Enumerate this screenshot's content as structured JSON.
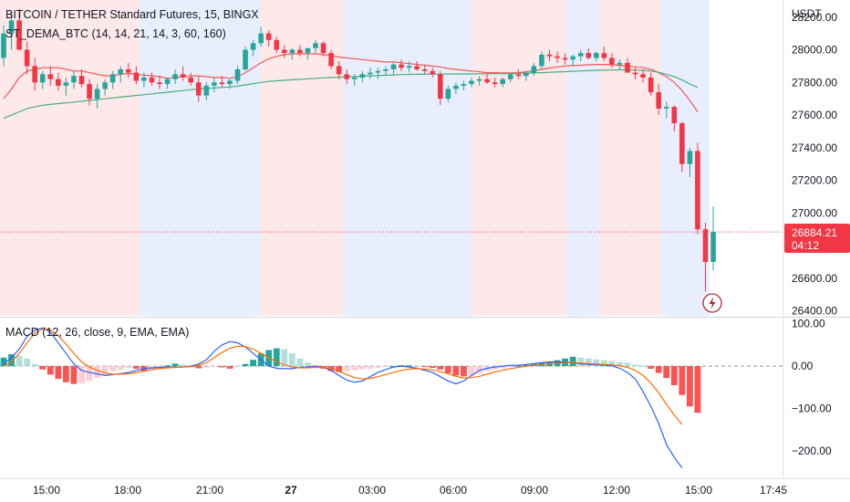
{
  "header": {
    "symbol_title": "BITCOIN / TETHER Standard Futures, 15, BINGX",
    "indicator": "ST_DEMA_BTC (14, 14, 21, 14, 3, 60, 160)",
    "currency": "USDT"
  },
  "price_badge": {
    "price": "26884.21",
    "countdown": "04:12"
  },
  "colors": {
    "up": "#26a69a",
    "down": "#f23645",
    "red_zone": "#fde8ea",
    "blue_zone": "#e8eefd",
    "dema_fast": "#f05a5a",
    "dema_slow": "#4caf7a",
    "macd_line": "#2962ff",
    "signal_line": "#ff6d00"
  },
  "chart_data": [
    {
      "type": "candlestick",
      "title": "BITCOIN / TETHER Standard Futures, 15, BINGX",
      "y_ticks": [
        "28200.00",
        "28000.00",
        "27800.00",
        "27600.00",
        "27400.00",
        "27200.00",
        "27000.00",
        "26800.00",
        "26600.00",
        "26400.00"
      ],
      "ylim": [
        26370,
        28305
      ],
      "x_ticks": [
        "15:00",
        "18:00",
        "21:00",
        "27",
        "03:00",
        "06:00",
        "09:00",
        "12:00",
        "15:00",
        "17:45"
      ],
      "candles_ohlc": [
        [
          27950,
          28150,
          27900,
          28100
        ],
        [
          28100,
          28230,
          28000,
          28180
        ],
        [
          28180,
          28250,
          28050,
          28000
        ],
        [
          28000,
          28050,
          27850,
          27900
        ],
        [
          27900,
          27950,
          27750,
          27800
        ],
        [
          27800,
          27870,
          27760,
          27850
        ],
        [
          27850,
          27900,
          27780,
          27820
        ],
        [
          27820,
          27860,
          27750,
          27780
        ],
        [
          27780,
          27830,
          27720,
          27800
        ],
        [
          27800,
          27870,
          27760,
          27840
        ],
        [
          27840,
          27880,
          27770,
          27790
        ],
        [
          27790,
          27820,
          27660,
          27700
        ],
        [
          27700,
          27790,
          27640,
          27760
        ],
        [
          27760,
          27820,
          27720,
          27800
        ],
        [
          27800,
          27870,
          27760,
          27850
        ],
        [
          27850,
          27900,
          27800,
          27880
        ],
        [
          27880,
          27920,
          27830,
          27860
        ],
        [
          27860,
          27900,
          27790,
          27810
        ],
        [
          27810,
          27860,
          27770,
          27830
        ],
        [
          27830,
          27860,
          27780,
          27800
        ],
        [
          27800,
          27840,
          27760,
          27790
        ],
        [
          27790,
          27830,
          27760,
          27820
        ],
        [
          27820,
          27880,
          27790,
          27850
        ],
        [
          27850,
          27900,
          27810,
          27830
        ],
        [
          27830,
          27860,
          27780,
          27800
        ],
        [
          27800,
          27840,
          27680,
          27720
        ],
        [
          27720,
          27800,
          27690,
          27780
        ],
        [
          27780,
          27830,
          27740,
          27800
        ],
        [
          27800,
          27840,
          27770,
          27790
        ],
        [
          27790,
          27820,
          27760,
          27810
        ],
        [
          27810,
          27900,
          27790,
          27880
        ],
        [
          27880,
          28020,
          27870,
          28000
        ],
        [
          28000,
          28060,
          27960,
          28040
        ],
        [
          28040,
          28140,
          28020,
          28100
        ],
        [
          28100,
          28120,
          28020,
          28060
        ],
        [
          28060,
          28080,
          27980,
          28000
        ],
        [
          28000,
          28030,
          27950,
          27980
        ],
        [
          27980,
          28010,
          27940,
          28000
        ],
        [
          28000,
          28030,
          27960,
          27980
        ],
        [
          27980,
          28010,
          27940,
          28010
        ],
        [
          28010,
          28060,
          27980,
          28040
        ],
        [
          28040,
          28050,
          27960,
          27980
        ],
        [
          27980,
          28000,
          27880,
          27900
        ],
        [
          27900,
          27930,
          27820,
          27850
        ],
        [
          27850,
          27880,
          27790,
          27820
        ],
        [
          27820,
          27850,
          27780,
          27830
        ],
        [
          27830,
          27870,
          27800,
          27850
        ],
        [
          27850,
          27890,
          27820,
          27860
        ],
        [
          27860,
          27890,
          27820,
          27870
        ],
        [
          27870,
          27900,
          27840,
          27880
        ],
        [
          27880,
          27920,
          27850,
          27910
        ],
        [
          27910,
          27940,
          27870,
          27890
        ],
        [
          27890,
          27930,
          27860,
          27900
        ],
        [
          27900,
          27930,
          27870,
          27880
        ],
        [
          27880,
          27910,
          27850,
          27870
        ],
        [
          27870,
          27890,
          27830,
          27850
        ],
        [
          27850,
          27870,
          27660,
          27700
        ],
        [
          27700,
          27780,
          27680,
          27760
        ],
        [
          27760,
          27800,
          27730,
          27780
        ],
        [
          27780,
          27810,
          27750,
          27790
        ],
        [
          27790,
          27830,
          27770,
          27810
        ],
        [
          27810,
          27840,
          27780,
          27820
        ],
        [
          27820,
          27850,
          27790,
          27800
        ],
        [
          27800,
          27830,
          27770,
          27790
        ],
        [
          27790,
          27830,
          27770,
          27820
        ],
        [
          27820,
          27860,
          27800,
          27850
        ],
        [
          27850,
          27880,
          27820,
          27840
        ],
        [
          27840,
          27870,
          27810,
          27860
        ],
        [
          27860,
          27920,
          27840,
          27900
        ],
        [
          27900,
          27990,
          27880,
          27970
        ],
        [
          27970,
          28000,
          27930,
          27960
        ],
        [
          27960,
          27990,
          27920,
          27950
        ],
        [
          27950,
          27980,
          27910,
          27940
        ],
        [
          27940,
          27970,
          27900,
          27960
        ],
        [
          27960,
          28000,
          27930,
          27980
        ],
        [
          27980,
          28010,
          27940,
          27950
        ],
        [
          27950,
          27990,
          27930,
          27980
        ],
        [
          27980,
          28020,
          27930,
          27950
        ],
        [
          27950,
          27980,
          27890,
          27910
        ],
        [
          27910,
          27940,
          27880,
          27920
        ],
        [
          27920,
          27950,
          27870,
          27860
        ],
        [
          27860,
          27890,
          27820,
          27850
        ],
        [
          27850,
          27880,
          27800,
          27830
        ],
        [
          27830,
          27860,
          27720,
          27740
        ],
        [
          27740,
          27790,
          27600,
          27640
        ],
        [
          27640,
          27680,
          27580,
          27650
        ],
        [
          27650,
          27660,
          27500,
          27550
        ],
        [
          27550,
          27560,
          27250,
          27300
        ],
        [
          27300,
          27400,
          27220,
          27380
        ],
        [
          27380,
          27430,
          26870,
          26900
        ],
        [
          26900,
          26940,
          26520,
          26700
        ],
        [
          26700,
          27040,
          26650,
          26884
        ]
      ],
      "series": [
        {
          "name": "",
          "values": [
            27700,
            27760,
            27830,
            27870,
            27880,
            27890,
            27890,
            27890,
            27880,
            27870,
            27870,
            27860,
            27850,
            27840,
            27840,
            27850,
            27855,
            27850,
            27845,
            27840,
            27835,
            27825,
            27830,
            27835,
            27840,
            27840,
            27835,
            27830,
            27830,
            27825,
            27835,
            27860,
            27890,
            27920,
            27945,
            27960,
            27970,
            27975,
            27975,
            27975,
            27975,
            27970,
            27965,
            27955,
            27950,
            27945,
            27940,
            27935,
            27930,
            27925,
            27925,
            27920,
            27915,
            27910,
            27905,
            27900,
            27895,
            27885,
            27880,
            27875,
            27870,
            27865,
            27860,
            27860,
            27858,
            27858,
            27860,
            27865,
            27872,
            27880,
            27888,
            27895,
            27900,
            27903,
            27905,
            27908,
            27910,
            27910,
            27908,
            27905,
            27900,
            27895,
            27890,
            27880,
            27860,
            27835,
            27800,
            27750,
            27690,
            27620
          ]
        },
        {
          "name": "",
          "values": [
            27580,
            27600,
            27620,
            27640,
            27650,
            27660,
            27665,
            27670,
            27675,
            27680,
            27685,
            27690,
            27695,
            27700,
            27705,
            27710,
            27715,
            27720,
            27725,
            27730,
            27735,
            27740,
            27745,
            27750,
            27755,
            27760,
            27763,
            27766,
            27769,
            27772,
            27777,
            27785,
            27793,
            27800,
            27806,
            27810,
            27813,
            27816,
            27819,
            27822,
            27825,
            27828,
            27830,
            27832,
            27834,
            27836,
            27838,
            27840,
            27842,
            27844,
            27846,
            27848,
            27849,
            27850,
            27850,
            27851,
            27851,
            27851,
            27852,
            27852,
            27852,
            27853,
            27853,
            27854,
            27854,
            27855,
            27856,
            27857,
            27858,
            27860,
            27862,
            27864,
            27866,
            27868,
            27870,
            27872,
            27874,
            27875,
            27876,
            27877,
            27877,
            27876,
            27874,
            27870,
            27862,
            27850,
            27835,
            27815,
            27790,
            27770
          ]
        }
      ]
    },
    {
      "type": "bar",
      "title": "MACD (12, 26, close, 9, EMA, EMA)",
      "y_ticks": [
        "100.00",
        "0.00",
        "−100.00",
        "−200.00"
      ],
      "ylim": [
        -245,
        110
      ],
      "series": [
        {
          "name": "",
          "values": [
            20,
            28,
            25,
            18,
            5,
            -8,
            -20,
            -30,
            -38,
            -42,
            -40,
            -35,
            -28,
            -20,
            -12,
            -8,
            -4,
            -6,
            -12,
            -10,
            -5,
            2,
            6,
            4,
            -2,
            -5,
            -4,
            -2,
            -3,
            -6,
            -2,
            5,
            15,
            30,
            38,
            42,
            40,
            30,
            18,
            8,
            0,
            -6,
            -12,
            -14,
            -12,
            -10,
            -8,
            -6,
            -4,
            -2,
            0,
            2,
            2,
            0,
            -2,
            -4,
            -8,
            -16,
            -22,
            -24,
            -22,
            -18,
            -12,
            -8,
            -5,
            -2,
            1,
            4,
            6,
            8,
            10,
            14,
            18,
            22,
            20,
            18,
            16,
            14,
            12,
            10,
            8,
            4,
            0,
            -6,
            -16,
            -28,
            -45,
            -68,
            -95,
            -110
          ]
        },
        {
          "name": "",
          "values": [
            5,
            20,
            40,
            70,
            85,
            90,
            80,
            55,
            30,
            5,
            -10,
            -15,
            -18,
            -22,
            -20,
            -18,
            -15,
            -10,
            -6,
            -4,
            -3,
            -2,
            -2,
            -2,
            0,
            5,
            15,
            35,
            50,
            58,
            55,
            45,
            30,
            15,
            0,
            -5,
            -6,
            -6,
            -3,
            -2,
            0,
            -3,
            -10,
            -22,
            -33,
            -38,
            -35,
            -25,
            -15,
            -8,
            -2,
            0,
            -2,
            -5,
            -10,
            -15,
            -25,
            -35,
            -42,
            -35,
            -22,
            -10,
            -5,
            -2,
            0,
            2,
            2,
            4,
            6,
            8,
            10,
            10,
            9,
            8,
            5,
            4,
            3,
            2,
            1,
            -5,
            -15,
            -30,
            -60,
            -95,
            -135,
            -185,
            -215,
            -240
          ]
        },
        {
          "name": "",
          "values": [
            0,
            10,
            30,
            55,
            78,
            88,
            85,
            72,
            52,
            30,
            10,
            -2,
            -10,
            -16,
            -19,
            -19,
            -18,
            -15,
            -12,
            -8,
            -6,
            -4,
            -3,
            -2,
            -1,
            2,
            8,
            20,
            32,
            42,
            47,
            46,
            40,
            30,
            20,
            10,
            3,
            -2,
            -4,
            -4,
            -3,
            -3,
            -6,
            -12,
            -20,
            -27,
            -30,
            -29,
            -25,
            -20,
            -15,
            -10,
            -7,
            -6,
            -7,
            -9,
            -13,
            -18,
            -24,
            -28,
            -27,
            -24,
            -19,
            -14,
            -10,
            -6,
            -3,
            0,
            2,
            4,
            6,
            7,
            8,
            8,
            7,
            6,
            5,
            4,
            3,
            1,
            -3,
            -10,
            -22,
            -40,
            -63,
            -90,
            -115,
            -138
          ]
        }
      ]
    }
  ],
  "zones": [
    {
      "label": "",
      "color": "red"
    },
    {
      "label": "",
      "color": "blue"
    },
    {
      "label": "",
      "color": "red"
    },
    {
      "label": "",
      "color": "blue"
    },
    {
      "label": "",
      "color": "red"
    },
    {
      "label": "",
      "color": "blue"
    },
    {
      "label": "",
      "color": "red"
    },
    {
      "label": "",
      "color": "blue"
    },
    {
      "label": "",
      "color": "red"
    }
  ]
}
